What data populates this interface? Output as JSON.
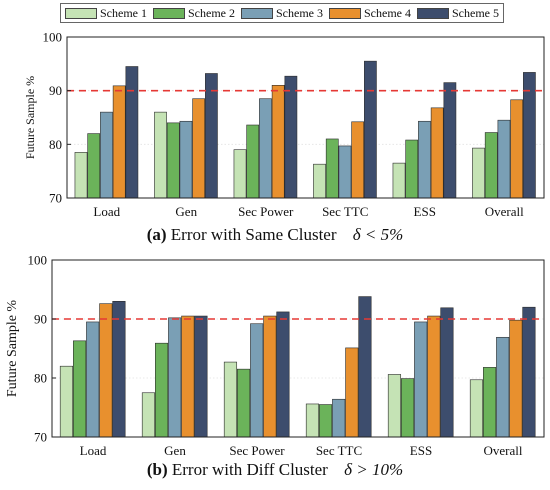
{
  "legend": {
    "entries": [
      {
        "name": "Scheme 1",
        "color": "#c5e3b5"
      },
      {
        "name": "Scheme 2",
        "color": "#6bb35a"
      },
      {
        "name": "Scheme 3",
        "color": "#7a9fb5"
      },
      {
        "name": "Scheme 4",
        "color": "#e8902e"
      },
      {
        "name": "Scheme 5",
        "color": "#3d4d6d"
      }
    ]
  },
  "captions": {
    "a": {
      "tag": "(a)",
      "text": "Error with Same Cluster",
      "math": "δ < 5%"
    },
    "b": {
      "tag": "(b)",
      "text": "Error with Diff Cluster",
      "math": "δ > 10%"
    }
  },
  "chart_data": [
    {
      "type": "bar",
      "ylabel": "Future Sample %",
      "ylim": [
        70,
        100
      ],
      "yticks": [
        70,
        80,
        90,
        100
      ],
      "reference_line": {
        "value": 90,
        "style": "dashed",
        "color": "#e53935"
      },
      "categories": [
        "Load",
        "Gen",
        "Sec Power",
        "Sec TTC",
        "ESS",
        "Overall"
      ],
      "series": [
        {
          "name": "Scheme 1",
          "values": [
            78.5,
            86.0,
            79.0,
            76.3,
            76.5,
            79.3
          ]
        },
        {
          "name": "Scheme 2",
          "values": [
            82.0,
            84.0,
            83.6,
            81.0,
            80.8,
            82.2
          ]
        },
        {
          "name": "Scheme 3",
          "values": [
            86.0,
            84.3,
            88.5,
            79.7,
            84.3,
            84.5
          ]
        },
        {
          "name": "Scheme 4",
          "values": [
            90.9,
            88.5,
            91.0,
            84.2,
            86.8,
            88.3
          ]
        },
        {
          "name": "Scheme 5",
          "values": [
            94.5,
            93.2,
            92.7,
            95.5,
            91.5,
            93.4
          ]
        }
      ]
    },
    {
      "type": "bar",
      "ylabel": "Future Sample %",
      "ylim": [
        70,
        100
      ],
      "yticks": [
        70,
        80,
        90,
        100
      ],
      "reference_line": {
        "value": 90,
        "style": "dashed",
        "color": "#e53935"
      },
      "categories": [
        "Load",
        "Gen",
        "Sec Power",
        "Sec TTC",
        "ESS",
        "Overall"
      ],
      "series": [
        {
          "name": "Scheme 1",
          "values": [
            82.0,
            77.5,
            82.7,
            75.6,
            80.6,
            79.7
          ]
        },
        {
          "name": "Scheme 2",
          "values": [
            86.3,
            85.9,
            81.5,
            75.5,
            79.9,
            81.8
          ]
        },
        {
          "name": "Scheme 3",
          "values": [
            89.5,
            90.2,
            89.2,
            76.4,
            89.5,
            86.9
          ]
        },
        {
          "name": "Scheme 4",
          "values": [
            92.6,
            90.5,
            90.5,
            85.1,
            90.5,
            89.8
          ]
        },
        {
          "name": "Scheme 5",
          "values": [
            93.0,
            90.5,
            91.2,
            93.8,
            91.9,
            92.0
          ]
        }
      ]
    }
  ]
}
